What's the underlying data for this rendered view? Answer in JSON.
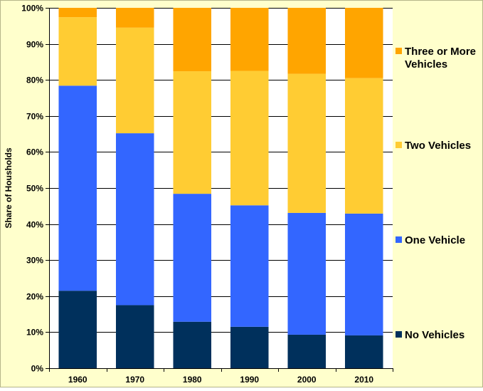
{
  "chart_data": {
    "type": "bar",
    "stacked": true,
    "percent_stacked": true,
    "categories": [
      "1960",
      "1970",
      "1980",
      "1990",
      "2000",
      "2010"
    ],
    "series": [
      {
        "name": "No Vehicles",
        "color": "#00305C",
        "values": [
          21.5,
          17.5,
          12.9,
          11.5,
          9.3,
          9.1
        ]
      },
      {
        "name": "One Vehicle",
        "color": "#3366FF",
        "values": [
          56.9,
          47.7,
          35.5,
          33.7,
          33.8,
          33.8
        ]
      },
      {
        "name": "Two Vehicles",
        "color": "#FFCC33",
        "values": [
          19.0,
          29.3,
          34.0,
          37.3,
          38.6,
          37.6
        ]
      },
      {
        "name": "Three or More Vehicles",
        "color": "#FFA500",
        "values": [
          2.6,
          5.5,
          17.6,
          17.5,
          18.3,
          19.5
        ]
      }
    ],
    "ylabel": "Share of Housholds",
    "xlabel": "",
    "ylim": [
      0,
      100
    ],
    "yticks": [
      "0%",
      "10%",
      "20%",
      "30%",
      "40%",
      "50%",
      "60%",
      "70%",
      "80%",
      "90%",
      "100%"
    ],
    "grid": true,
    "legend_position": "right",
    "legend_order": [
      "Three or More Vehicles",
      "Two Vehicles",
      "One Vehicle",
      "No Vehicles"
    ],
    "background_color": "#FFFFCC",
    "plot_background_color": "#FFFFFF"
  }
}
